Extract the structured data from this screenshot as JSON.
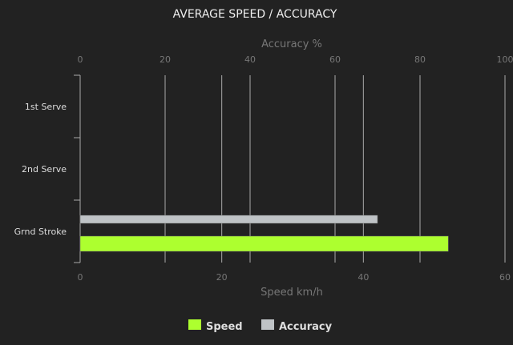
{
  "chart_data": {
    "type": "bar",
    "orientation": "horizontal",
    "title": "AVERAGE SPEED / ACCURACY",
    "categories": [
      "1st Serve",
      "2nd Serve",
      "Grnd Stroke"
    ],
    "series": [
      {
        "name": "Speed",
        "axis": "bottom",
        "color": "#adff2f",
        "values": [
          null,
          null,
          52
        ]
      },
      {
        "name": "Accuracy",
        "axis": "top",
        "color": "#bfc3c6",
        "values": [
          null,
          null,
          70
        ]
      }
    ],
    "top_axis": {
      "label": "Accuracy %",
      "range": [
        0,
        100
      ],
      "ticks": [
        0,
        20,
        40,
        60,
        80,
        100
      ]
    },
    "bottom_axis": {
      "label": "Speed km/h",
      "range": [
        0,
        60
      ],
      "ticks": [
        0,
        20,
        40,
        60
      ]
    },
    "grid": true,
    "legend": {
      "placement": "bottom",
      "entries": [
        "Speed",
        "Accuracy"
      ]
    },
    "colors": {
      "background": "#222222",
      "grid": "#aaaaaa",
      "text": "#dddddd",
      "axis_text": "#777777"
    }
  }
}
